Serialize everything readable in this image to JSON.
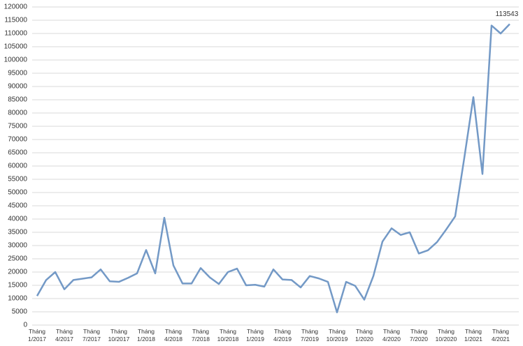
{
  "chart_data": {
    "type": "line",
    "categories": [
      "Tháng 1/2017",
      null,
      null,
      "Tháng 4/2017",
      null,
      null,
      "Tháng 7/2017",
      null,
      null,
      "Tháng 10/2017",
      null,
      null,
      "Tháng 1/2018",
      null,
      null,
      "Tháng 4/2018",
      null,
      null,
      "Tháng 7/2018",
      null,
      null,
      "Tháng 10/2018",
      null,
      null,
      "Tháng 1/2019",
      null,
      null,
      "Tháng 4/2019",
      null,
      null,
      "Tháng 7/2019",
      null,
      null,
      "Tháng 10/2019",
      null,
      null,
      "Tháng 1/2020",
      null,
      null,
      "Tháng 4/2020",
      null,
      null,
      "Tháng 7/2020",
      null,
      null,
      "Tháng 10/2020",
      null,
      null,
      "Tháng 1/2021",
      null,
      null,
      "Tháng 4/2021",
      null
    ],
    "values": [
      11000,
      17000,
      20000,
      13500,
      17000,
      17500,
      18000,
      21000,
      16500,
      16300,
      17800,
      19500,
      28300,
      19500,
      40500,
      22500,
      15700,
      15700,
      21500,
      18000,
      15500,
      20000,
      21300,
      15000,
      15200,
      14500,
      21000,
      17200,
      17000,
      14200,
      18500,
      17600,
      16300,
      4800,
      16300,
      14800,
      9600,
      18500,
      31500,
      36500,
      34000,
      35000,
      27000,
      28200,
      31300,
      36000,
      41000,
      63000,
      86000,
      57000,
      113000,
      110000,
      113543
    ],
    "color": "#7399c6",
    "ylim": [
      0,
      120000
    ],
    "yticks": [
      0,
      5000,
      10000,
      15000,
      20000,
      25000,
      30000,
      35000,
      40000,
      45000,
      50000,
      55000,
      60000,
      65000,
      70000,
      75000,
      80000,
      85000,
      90000,
      95000,
      100000,
      105000,
      110000,
      115000,
      120000
    ],
    "grid": true
  }
}
